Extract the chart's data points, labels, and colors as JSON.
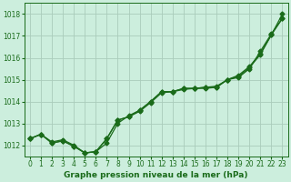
{
  "xlabel": "Graphe pression niveau de la mer (hPa)",
  "xlim": [
    -0.5,
    23.5
  ],
  "ylim": [
    1011.5,
    1018.5
  ],
  "yticks": [
    1012,
    1013,
    1014,
    1015,
    1016,
    1017,
    1018
  ],
  "xticks": [
    0,
    1,
    2,
    3,
    4,
    5,
    6,
    7,
    8,
    9,
    10,
    11,
    12,
    13,
    14,
    15,
    16,
    17,
    18,
    19,
    20,
    21,
    22,
    23
  ],
  "background_color": "#cceedd",
  "grid_color": "#aaccbb",
  "line_color": "#1a6b1a",
  "line1_y": [
    1012.3,
    1012.5,
    1012.15,
    1012.25,
    1012.0,
    1011.65,
    1011.7,
    1012.1,
    1013.0,
    1013.35,
    1013.6,
    1014.0,
    1014.45,
    1014.45,
    1014.6,
    1014.6,
    1014.65,
    1014.65,
    1015.0,
    1015.1,
    1015.5,
    1016.3,
    1017.1,
    1017.8
  ],
  "line2_y": [
    1012.3,
    1012.5,
    1012.1,
    1012.2,
    1011.95,
    1011.65,
    1011.7,
    1012.3,
    1013.15,
    1013.3,
    1013.6,
    1014.0,
    1014.45,
    1014.45,
    1014.6,
    1014.6,
    1014.65,
    1014.7,
    1015.0,
    1015.2,
    1015.6,
    1016.2,
    1017.05,
    1018.0
  ],
  "line3_y": [
    1012.3,
    1012.5,
    1012.1,
    1012.2,
    1011.95,
    1011.65,
    1011.7,
    1012.3,
    1013.15,
    1013.3,
    1013.55,
    1013.95,
    1014.4,
    1014.45,
    1014.55,
    1014.6,
    1014.6,
    1014.65,
    1015.0,
    1015.15,
    1015.55,
    1016.15,
    1017.05,
    1017.8
  ],
  "tick_labelsize": 5.5,
  "xlabel_fontsize": 6.5
}
